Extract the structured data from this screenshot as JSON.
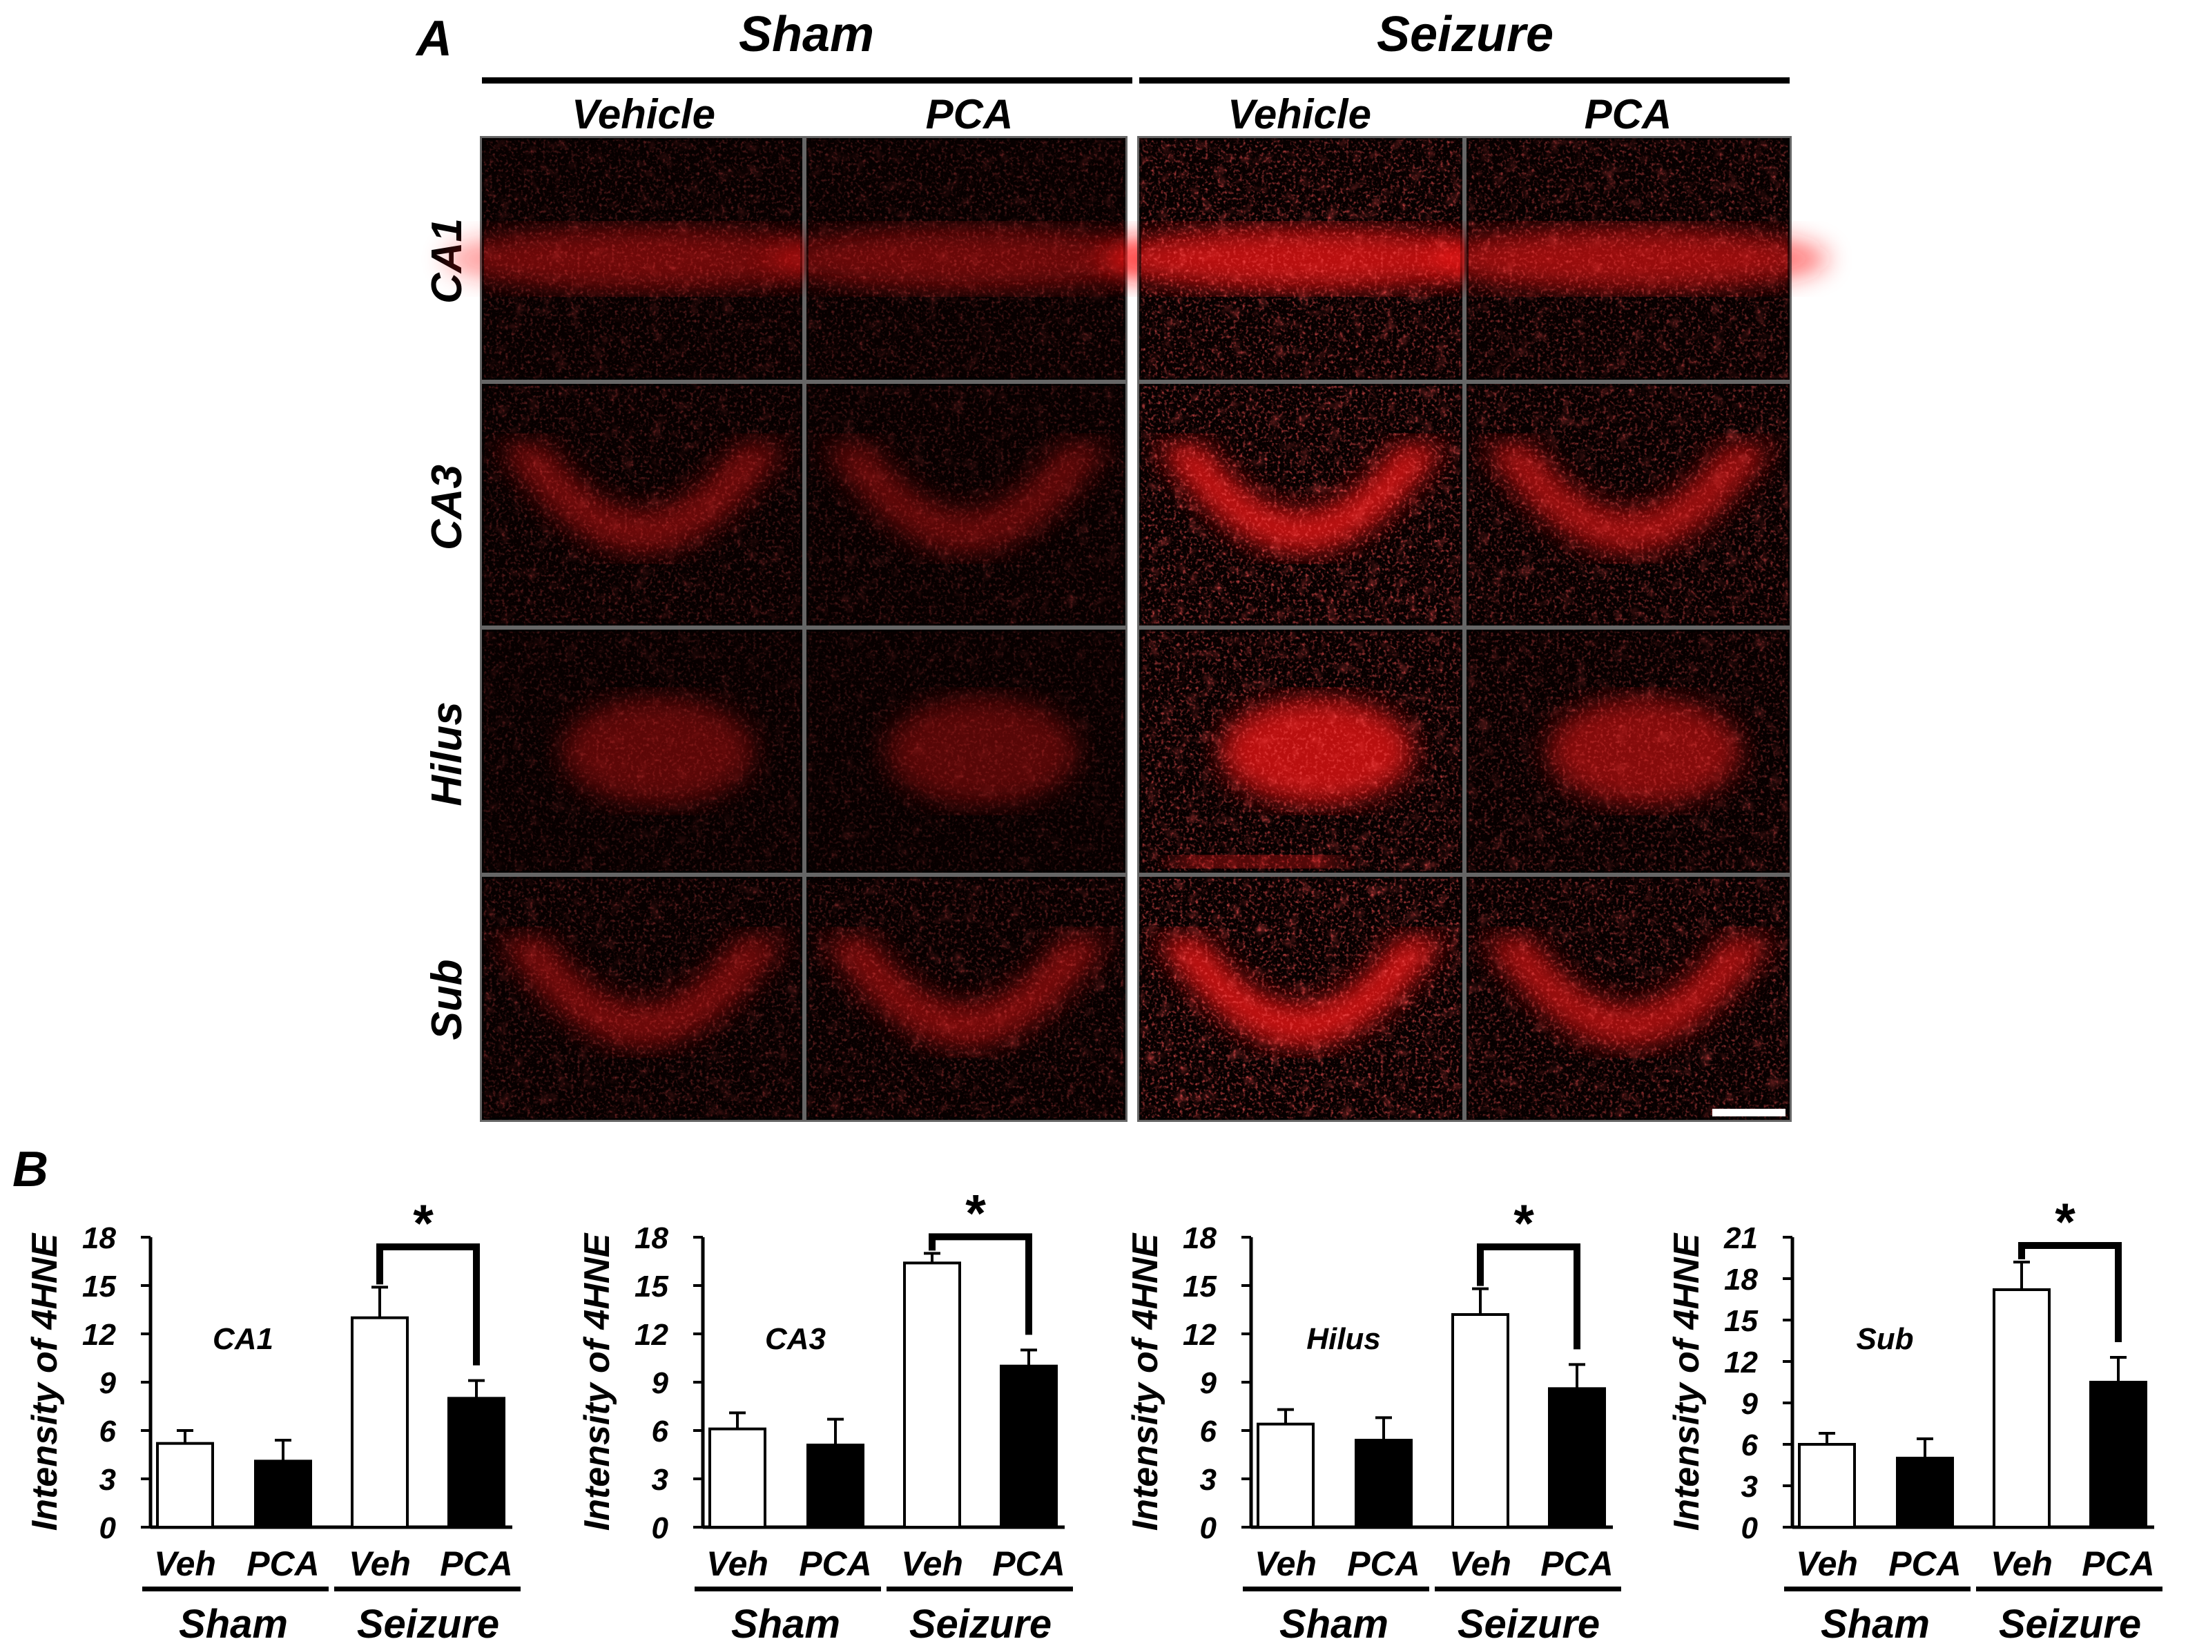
{
  "panel_a": {
    "label": "A",
    "groups": [
      "Sham",
      "Seizure"
    ],
    "columns": [
      "Vehicle",
      "PCA",
      "Vehicle",
      "PCA"
    ],
    "rows": [
      "CA1",
      "CA3",
      "Hilus",
      "Sub"
    ],
    "stain_color": "#ff1a1a",
    "scale_bar": true
  },
  "panel_b": {
    "label": "B",
    "ylabel": "Intensity of 4HNE",
    "tick_labels": [
      "Veh",
      "PCA",
      "Veh",
      "PCA"
    ],
    "group_labels": [
      "Sham",
      "Seizure"
    ],
    "significance": "*"
  },
  "chart_data": [
    {
      "type": "bar",
      "title": "CA1",
      "ylabel": "Intensity of 4HNE",
      "categories": [
        "Veh",
        "PCA",
        "Veh",
        "PCA"
      ],
      "groups": [
        "Sham",
        "Seizure"
      ],
      "values": [
        5.2,
        4.1,
        13.0,
        8.0
      ],
      "errors": [
        0.8,
        1.3,
        1.9,
        1.1
      ],
      "fills": [
        "#ffffff",
        "#000000",
        "#ffffff",
        "#000000"
      ],
      "yticks": [
        0,
        3,
        6,
        9,
        12,
        15,
        18
      ],
      "ylim": [
        0,
        18
      ],
      "significance": "*"
    },
    {
      "type": "bar",
      "title": "CA3",
      "ylabel": "Intensity of 4HNE",
      "categories": [
        "Veh",
        "PCA",
        "Veh",
        "PCA"
      ],
      "groups": [
        "Sham",
        "Seizure"
      ],
      "values": [
        6.1,
        5.1,
        16.4,
        10.0
      ],
      "errors": [
        1.0,
        1.6,
        0.6,
        1.0
      ],
      "fills": [
        "#ffffff",
        "#000000",
        "#ffffff",
        "#000000"
      ],
      "yticks": [
        0,
        3,
        6,
        9,
        12,
        15,
        18
      ],
      "ylim": [
        0,
        18
      ],
      "significance": "*"
    },
    {
      "type": "bar",
      "title": "Hilus",
      "ylabel": "Intensity of 4HNE",
      "categories": [
        "Veh",
        "PCA",
        "Veh",
        "PCA"
      ],
      "groups": [
        "Sham",
        "Seizure"
      ],
      "values": [
        6.4,
        5.4,
        13.2,
        8.6
      ],
      "errors": [
        0.9,
        1.4,
        1.6,
        1.5
      ],
      "fills": [
        "#ffffff",
        "#000000",
        "#ffffff",
        "#000000"
      ],
      "yticks": [
        0,
        3,
        6,
        9,
        12,
        15,
        18
      ],
      "ylim": [
        0,
        18
      ],
      "significance": "*"
    },
    {
      "type": "bar",
      "title": "Sub",
      "ylabel": "Intensity of 4HNE",
      "categories": [
        "Veh",
        "PCA",
        "Veh",
        "PCA"
      ],
      "groups": [
        "Sham",
        "Seizure"
      ],
      "values": [
        6.0,
        5.0,
        17.2,
        10.5
      ],
      "errors": [
        0.8,
        1.4,
        2.0,
        1.8
      ],
      "fills": [
        "#ffffff",
        "#000000",
        "#ffffff",
        "#000000"
      ],
      "yticks": [
        0,
        3,
        6,
        9,
        12,
        15,
        18,
        21
      ],
      "ylim": [
        0,
        21
      ],
      "significance": "*"
    }
  ]
}
